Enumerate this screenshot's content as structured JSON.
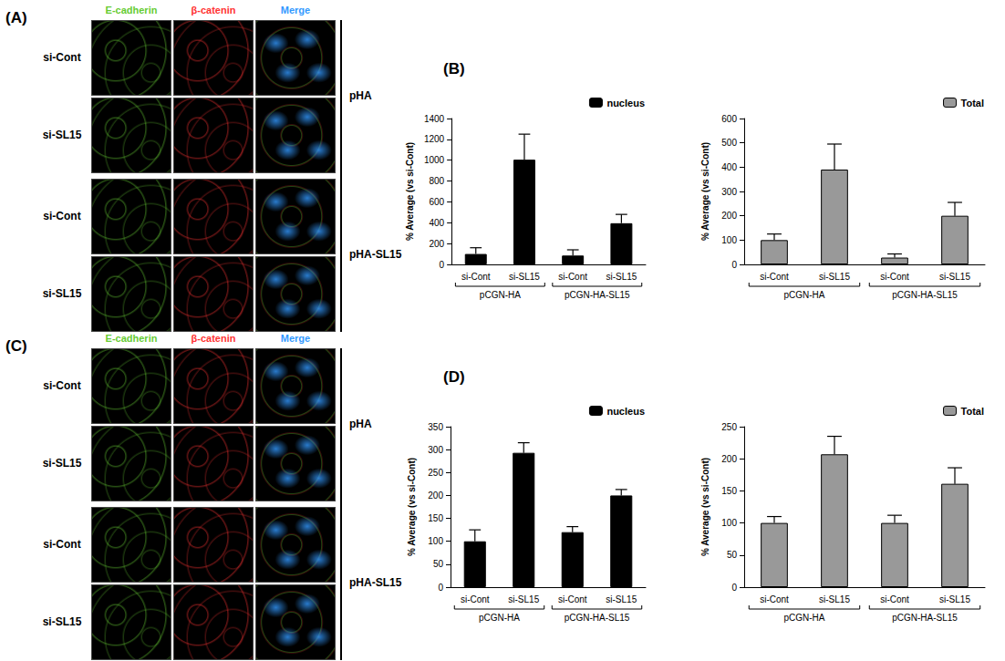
{
  "image_panels": [
    {
      "label": "(A)",
      "channels": [
        "E-cadherin",
        "β-catenin",
        "Merge"
      ],
      "colors": [
        "#66cc33",
        "#ff3333",
        "#3399ff"
      ],
      "rows": [
        "si-Cont",
        "si-SL15",
        "si-Cont",
        "si-SL15"
      ],
      "groups": [
        "pHA",
        "pHA-SL15"
      ]
    },
    {
      "label": "(C)",
      "channels": [
        "E-cadherin",
        "β-catenin",
        "Merge"
      ],
      "colors": [
        "#66cc33",
        "#ff3333",
        "#3399ff"
      ],
      "rows": [
        "si-Cont",
        "si-SL15",
        "si-Cont",
        "si-SL15"
      ],
      "groups": [
        "pHA",
        "pHA-SL15"
      ]
    }
  ],
  "chart_data": [
    {
      "type": "bar",
      "annotation": "(B)",
      "categories": [
        "si-Cont",
        "si-SL15",
        "si-Cont",
        "si-SL15"
      ],
      "groups": [
        "pCGN-HA",
        "pCGN-HA-SL15"
      ],
      "ylabel": "% Average (vs si-Cont)",
      "ylim": [
        0,
        1400
      ],
      "yticks": [
        0,
        200,
        400,
        600,
        800,
        1000,
        1200,
        1400
      ],
      "grid": false,
      "legend": "upper right",
      "series": [
        {
          "name": "nucleus",
          "color": "#000000",
          "values": [
            100,
            1005,
            85,
            395
          ],
          "errors": [
            60,
            245,
            55,
            85
          ]
        }
      ]
    },
    {
      "type": "bar",
      "categories": [
        "si-Cont",
        "si-SL15",
        "si-Cont",
        "si-SL15"
      ],
      "groups": [
        "pCGN-HA",
        "pCGN-HA-SL15"
      ],
      "ylabel": "% Average (vs si-Cont)",
      "ylim": [
        0,
        600
      ],
      "yticks": [
        0,
        100,
        200,
        300,
        400,
        500,
        600
      ],
      "grid": false,
      "legend": "upper right",
      "series": [
        {
          "name": "Total",
          "color": "#999999",
          "values": [
            100,
            390,
            28,
            200
          ],
          "errors": [
            25,
            105,
            15,
            55
          ]
        }
      ]
    },
    {
      "type": "bar",
      "annotation": "(D)",
      "categories": [
        "si-Cont",
        "si-SL15",
        "si-Cont",
        "si-SL15"
      ],
      "groups": [
        "pCGN-HA",
        "pCGN-HA-SL15"
      ],
      "ylabel": "% Average (vs si-Cont)",
      "ylim": [
        0,
        350
      ],
      "yticks": [
        0,
        50,
        100,
        150,
        200,
        250,
        300,
        350
      ],
      "grid": false,
      "legend": "upper right",
      "series": [
        {
          "name": "nucleus",
          "color": "#000000",
          "values": [
            100,
            293,
            120,
            200
          ],
          "errors": [
            25,
            22,
            12,
            13
          ]
        }
      ]
    },
    {
      "type": "bar",
      "categories": [
        "si-Cont",
        "si-SL15",
        "si-Cont",
        "si-SL15"
      ],
      "groups": [
        "pCGN-HA",
        "pCGN-HA-SL15"
      ],
      "ylabel": "% Average (vs si-Cont)",
      "ylim": [
        0,
        250
      ],
      "yticks": [
        0,
        50,
        100,
        150,
        200,
        250
      ],
      "grid": false,
      "legend": "upper right",
      "series": [
        {
          "name": "Total",
          "color": "#999999",
          "values": [
            100,
            207,
            100,
            161
          ],
          "errors": [
            10,
            28,
            12,
            25
          ]
        }
      ]
    }
  ]
}
